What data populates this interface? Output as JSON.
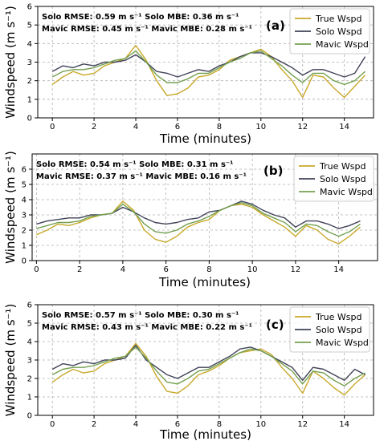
{
  "colors": {
    "true": "#c8a82a",
    "solo": "#404258",
    "mavic": "#74a050",
    "grid": "#b0b0b0",
    "axis": "#000000"
  },
  "chart_data": [
    {
      "type": "line",
      "panel_label": "(a)",
      "xlabel": "Time (minutes)",
      "ylabel": "Windspeed (m s⁻¹)",
      "xlim": [
        -0.7,
        15.4
      ],
      "ylim": [
        0,
        6
      ],
      "xticks": [
        0,
        2,
        4,
        6,
        8,
        10,
        12,
        14
      ],
      "yticks": [
        0,
        1,
        2,
        3,
        4,
        5,
        6
      ],
      "grid": true,
      "legend_position": "top-right",
      "stats": {
        "line1": "Solo RMSE:   0.59 m s⁻¹  Solo MBE:   0.36 m s⁻¹",
        "line2": "Mavic RMSE: 0.45 m s⁻¹ Mavic MBE: 0.28 m s⁻¹"
      },
      "series": [
        {
          "name": "True Wspd",
          "x": [
            0,
            0.5,
            1,
            1.5,
            2,
            2.5,
            3,
            3.5,
            4,
            4.5,
            5,
            5.5,
            6,
            6.5,
            7,
            7.5,
            8,
            8.5,
            9,
            9.5,
            10,
            10.5,
            11,
            11.5,
            12,
            12.5,
            13,
            13.5,
            14,
            14.5,
            15
          ],
          "y": [
            1.8,
            2.2,
            2.5,
            2.3,
            2.4,
            2.8,
            3.0,
            3.2,
            3.9,
            3.1,
            2.0,
            1.2,
            1.3,
            1.6,
            2.2,
            2.3,
            2.6,
            3.1,
            3.3,
            3.5,
            3.7,
            3.3,
            2.6,
            2.0,
            1.1,
            2.3,
            2.2,
            1.6,
            1.1,
            1.7,
            2.3
          ]
        },
        {
          "name": "Solo Wspd",
          "x": [
            0,
            0.5,
            1,
            1.5,
            2,
            2.5,
            3,
            3.5,
            4,
            4.5,
            5,
            5.5,
            6,
            6.5,
            7,
            7.5,
            8,
            8.5,
            9,
            9.5,
            10,
            10.5,
            11,
            11.5,
            12,
            12.5,
            13,
            13.5,
            14,
            14.5,
            15
          ],
          "y": [
            2.5,
            2.8,
            2.7,
            2.9,
            2.8,
            3.0,
            3.0,
            3.1,
            3.4,
            3.0,
            2.5,
            2.4,
            2.2,
            2.4,
            2.6,
            2.5,
            2.8,
            3.0,
            3.3,
            3.5,
            3.5,
            3.3,
            3.0,
            2.7,
            2.3,
            2.6,
            2.6,
            2.4,
            2.2,
            2.4,
            3.3
          ]
        },
        {
          "name": "Mavic Wspd",
          "x": [
            0,
            0.5,
            1,
            1.5,
            2,
            2.5,
            3,
            3.5,
            4,
            4.5,
            5,
            5.5,
            6,
            6.5,
            7,
            7.5,
            8,
            8.5,
            9,
            9.5,
            10,
            10.5,
            11,
            11.5,
            12,
            12.5,
            13,
            13.5,
            14,
            14.5,
            15
          ],
          "y": [
            2.2,
            2.5,
            2.6,
            2.6,
            2.7,
            2.9,
            3.1,
            3.2,
            3.6,
            3.0,
            2.3,
            1.9,
            1.9,
            2.1,
            2.4,
            2.4,
            2.7,
            3.0,
            3.2,
            3.5,
            3.6,
            3.2,
            2.8,
            2.3,
            1.9,
            2.4,
            2.4,
            2.0,
            1.8,
            2.0,
            2.5
          ]
        }
      ]
    },
    {
      "type": "line",
      "panel_label": "(b)",
      "xlabel": "Time (minutes)",
      "ylabel": "Windspeed (m s⁻¹)",
      "xlim": [
        -0.2,
        15.8
      ],
      "ylim": [
        0,
        7
      ],
      "xticks": [
        0,
        2,
        4,
        6,
        8,
        10,
        12,
        14
      ],
      "yticks": [
        0,
        1,
        2,
        3,
        4,
        5,
        6
      ],
      "grid": true,
      "legend_position": "top-right",
      "stats": {
        "line1": "Solo RMSE:   0.54 m s⁻¹  Solo MBE:   0.31 m s⁻¹",
        "line2": "Mavic RMSE: 0.37 m s⁻¹ Mavic MBE: 0.16 m s⁻¹"
      },
      "series": [
        {
          "name": "True Wspd",
          "x": [
            0,
            0.5,
            1,
            1.5,
            2,
            2.5,
            3,
            3.5,
            4,
            4.5,
            5,
            5.5,
            6,
            6.5,
            7,
            7.5,
            8,
            8.5,
            9,
            9.5,
            10,
            10.5,
            11,
            11.5,
            12,
            12.5,
            13,
            13.5,
            14,
            14.5,
            15
          ],
          "y": [
            1.7,
            2.0,
            2.4,
            2.3,
            2.5,
            2.8,
            3.0,
            3.1,
            3.9,
            3.3,
            2.0,
            1.4,
            1.2,
            1.6,
            2.2,
            2.5,
            2.7,
            3.3,
            3.6,
            3.7,
            3.5,
            3.0,
            2.6,
            2.2,
            1.6,
            2.3,
            2.0,
            1.4,
            1.1,
            1.6,
            2.2
          ]
        },
        {
          "name": "Solo Wspd",
          "x": [
            0,
            0.5,
            1,
            1.5,
            2,
            2.5,
            3,
            3.5,
            4,
            4.5,
            5,
            5.5,
            6,
            6.5,
            7,
            7.5,
            8,
            8.5,
            9,
            9.5,
            10,
            10.5,
            11,
            11.5,
            12,
            12.5,
            13,
            13.5,
            14,
            14.5,
            15
          ],
          "y": [
            2.4,
            2.6,
            2.7,
            2.8,
            2.8,
            3.0,
            3.0,
            3.1,
            3.5,
            3.2,
            2.8,
            2.5,
            2.4,
            2.5,
            2.7,
            2.8,
            3.2,
            3.3,
            3.6,
            3.9,
            3.7,
            3.3,
            3.0,
            2.8,
            2.2,
            2.6,
            2.6,
            2.4,
            2.1,
            2.3,
            2.6
          ]
        },
        {
          "name": "Mavic Wspd",
          "x": [
            0,
            0.5,
            1,
            1.5,
            2,
            2.5,
            3,
            3.5,
            4,
            4.5,
            5,
            5.5,
            6,
            6.5,
            7,
            7.5,
            8,
            8.5,
            9,
            9.5,
            10,
            10.5,
            11,
            11.5,
            12,
            12.5,
            13,
            13.5,
            14,
            14.5,
            15
          ],
          "y": [
            2.1,
            2.3,
            2.5,
            2.5,
            2.6,
            2.9,
            3.0,
            3.1,
            3.7,
            3.2,
            2.4,
            1.9,
            1.8,
            2.0,
            2.4,
            2.6,
            2.9,
            3.3,
            3.6,
            3.8,
            3.6,
            3.1,
            2.8,
            2.5,
            1.9,
            2.4,
            2.3,
            1.9,
            1.6,
            1.9,
            2.4
          ]
        }
      ]
    },
    {
      "type": "line",
      "panel_label": "(c)",
      "xlabel": "Time (minutes)",
      "ylabel": "Windspeed (m s⁻¹)",
      "xlim": [
        -0.7,
        15.4
      ],
      "ylim": [
        0,
        6
      ],
      "xticks": [
        0,
        2,
        4,
        6,
        8,
        10,
        12,
        14
      ],
      "yticks": [
        0,
        1,
        2,
        3,
        4,
        5,
        6
      ],
      "grid": true,
      "legend_position": "top-right",
      "stats": {
        "line1": "Solo RMSE:   0.57 m s⁻¹  Solo MBE:   0.30 m s⁻¹",
        "line2": "Mavic RMSE: 0.43 m s⁻¹ Mavic MBE: 0.22 m s⁻¹"
      },
      "series": [
        {
          "name": "True Wspd",
          "x": [
            0,
            0.5,
            1,
            1.5,
            2,
            2.5,
            3,
            3.5,
            4,
            4.5,
            5,
            5.5,
            6,
            6.5,
            7,
            7.5,
            8,
            8.5,
            9,
            9.5,
            10,
            10.5,
            11,
            11.5,
            12,
            12.5,
            13,
            13.5,
            14,
            14.5,
            15
          ],
          "y": [
            1.8,
            2.2,
            2.5,
            2.3,
            2.4,
            2.8,
            3.0,
            3.2,
            3.9,
            3.2,
            2.1,
            1.3,
            1.2,
            1.6,
            2.2,
            2.4,
            2.7,
            3.1,
            3.4,
            3.5,
            3.6,
            3.3,
            2.6,
            2.0,
            1.2,
            2.4,
            2.0,
            1.5,
            1.1,
            1.7,
            2.2
          ]
        },
        {
          "name": "Solo Wspd",
          "x": [
            0,
            0.5,
            1,
            1.5,
            2,
            2.5,
            3,
            3.5,
            4,
            4.5,
            5,
            5.5,
            6,
            6.5,
            7,
            7.5,
            8,
            8.5,
            9,
            9.5,
            10,
            10.5,
            11,
            11.5,
            12,
            12.5,
            13,
            13.5,
            14,
            14.5,
            15
          ],
          "y": [
            2.5,
            2.8,
            2.7,
            2.9,
            2.8,
            3.0,
            3.0,
            3.1,
            3.8,
            3.0,
            2.6,
            2.2,
            2.0,
            2.3,
            2.6,
            2.6,
            2.9,
            3.2,
            3.6,
            3.7,
            3.5,
            3.2,
            2.9,
            2.6,
            1.9,
            2.6,
            2.5,
            2.2,
            1.9,
            2.5,
            2.2
          ]
        },
        {
          "name": "Mavic Wspd",
          "x": [
            0,
            0.5,
            1,
            1.5,
            2,
            2.5,
            3,
            3.5,
            4,
            4.5,
            5,
            5.5,
            6,
            6.5,
            7,
            7.5,
            8,
            8.5,
            9,
            9.5,
            10,
            10.5,
            11,
            11.5,
            12,
            12.5,
            13,
            13.5,
            14,
            14.5,
            15
          ],
          "y": [
            2.2,
            2.5,
            2.6,
            2.6,
            2.7,
            2.9,
            3.1,
            3.2,
            3.7,
            3.1,
            2.4,
            1.8,
            1.7,
            2.0,
            2.4,
            2.5,
            2.8,
            3.1,
            3.4,
            3.6,
            3.5,
            3.2,
            2.8,
            2.4,
            1.7,
            2.4,
            2.3,
            1.9,
            1.6,
            2.0,
            2.3
          ]
        }
      ]
    }
  ]
}
